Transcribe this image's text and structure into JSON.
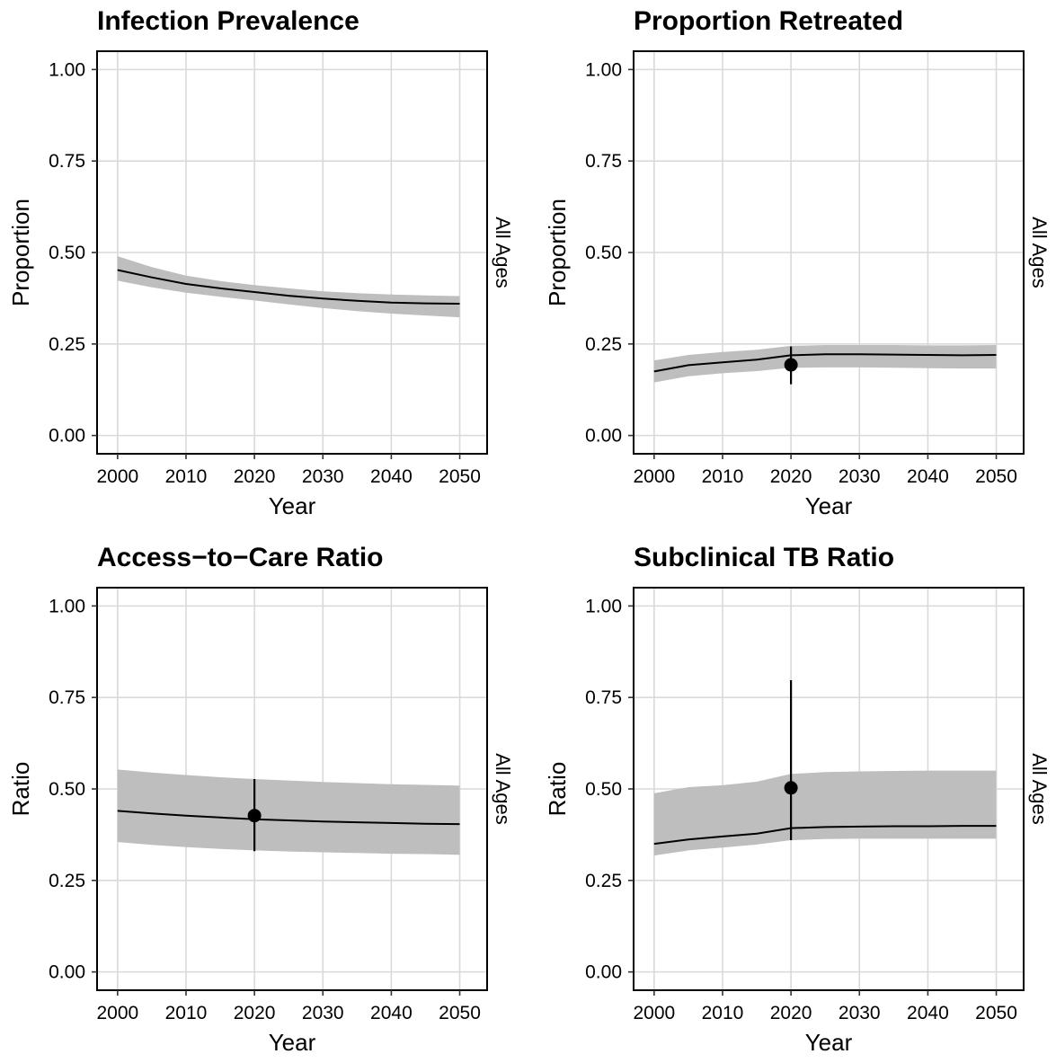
{
  "chart_data": [
    {
      "type": "line",
      "title": "Infection Prevalence",
      "xlabel": "Year",
      "ylabel": "Proportion",
      "facet_label": "All Ages",
      "xlim": [
        1997,
        2054
      ],
      "ylim": [
        -0.05,
        1.05
      ],
      "x_ticks": [
        2000,
        2010,
        2020,
        2030,
        2040,
        2050
      ],
      "y_ticks": [
        0,
        0.25,
        0.5,
        0.75,
        1
      ],
      "x_tick_labels": [
        "2000",
        "2010",
        "2020",
        "2030",
        "2040",
        "2050"
      ],
      "y_tick_labels": [
        "0.00",
        "0.25",
        "0.50",
        "0.75",
        "1.00"
      ],
      "grid": true,
      "series": [
        {
          "x": [
            2000,
            2005,
            2010,
            2015,
            2020,
            2025,
            2030,
            2035,
            2040,
            2045,
            2050
          ],
          "y": [
            0.452,
            0.432,
            0.414,
            0.402,
            0.392,
            0.382,
            0.374,
            0.368,
            0.363,
            0.361,
            0.36
          ],
          "lower": [
            0.423,
            0.405,
            0.39,
            0.379,
            0.369,
            0.358,
            0.348,
            0.34,
            0.333,
            0.328,
            0.323
          ],
          "upper": [
            0.49,
            0.46,
            0.437,
            0.422,
            0.411,
            0.402,
            0.394,
            0.389,
            0.385,
            0.383,
            0.381
          ]
        }
      ],
      "points": []
    },
    {
      "type": "line",
      "title": "Proportion Retreated",
      "xlabel": "Year",
      "ylabel": "Proportion",
      "facet_label": "All Ages",
      "xlim": [
        1997,
        2054
      ],
      "ylim": [
        -0.05,
        1.05
      ],
      "x_ticks": [
        2000,
        2010,
        2020,
        2030,
        2040,
        2050
      ],
      "y_ticks": [
        0,
        0.25,
        0.5,
        0.75,
        1
      ],
      "x_tick_labels": [
        "2000",
        "2010",
        "2020",
        "2030",
        "2040",
        "2050"
      ],
      "y_tick_labels": [
        "0.00",
        "0.25",
        "0.50",
        "0.75",
        "1.00"
      ],
      "grid": true,
      "series": [
        {
          "x": [
            2000,
            2005,
            2010,
            2015,
            2020,
            2025,
            2030,
            2035,
            2040,
            2045,
            2050
          ],
          "y": [
            0.175,
            0.192,
            0.2,
            0.207,
            0.219,
            0.222,
            0.222,
            0.221,
            0.22,
            0.219,
            0.22
          ],
          "lower": [
            0.145,
            0.162,
            0.17,
            0.176,
            0.185,
            0.186,
            0.186,
            0.185,
            0.184,
            0.183,
            0.183
          ],
          "upper": [
            0.205,
            0.22,
            0.228,
            0.234,
            0.245,
            0.247,
            0.247,
            0.247,
            0.246,
            0.246,
            0.247
          ]
        }
      ],
      "points": [
        {
          "x": 2020,
          "y": 0.193,
          "lower": 0.14,
          "upper": 0.243
        }
      ]
    },
    {
      "type": "line",
      "title": "Access−to−Care Ratio",
      "xlabel": "Year",
      "ylabel": "Ratio",
      "facet_label": "All Ages",
      "xlim": [
        1997,
        2054
      ],
      "ylim": [
        -0.05,
        1.05
      ],
      "x_ticks": [
        2000,
        2010,
        2020,
        2030,
        2040,
        2050
      ],
      "y_ticks": [
        0,
        0.25,
        0.5,
        0.75,
        1
      ],
      "x_tick_labels": [
        "2000",
        "2010",
        "2020",
        "2030",
        "2040",
        "2050"
      ],
      "y_tick_labels": [
        "0.00",
        "0.25",
        "0.50",
        "0.75",
        "1.00"
      ],
      "grid": true,
      "series": [
        {
          "x": [
            2000,
            2005,
            2010,
            2015,
            2020,
            2025,
            2030,
            2035,
            2040,
            2045,
            2050
          ],
          "y": [
            0.44,
            0.433,
            0.427,
            0.422,
            0.417,
            0.414,
            0.411,
            0.409,
            0.407,
            0.405,
            0.404
          ],
          "lower": [
            0.355,
            0.347,
            0.341,
            0.336,
            0.332,
            0.329,
            0.327,
            0.325,
            0.323,
            0.322,
            0.32
          ],
          "upper": [
            0.553,
            0.545,
            0.538,
            0.532,
            0.527,
            0.523,
            0.519,
            0.516,
            0.513,
            0.511,
            0.509
          ]
        }
      ],
      "points": [
        {
          "x": 2020,
          "y": 0.427,
          "lower": 0.33,
          "upper": 0.527
        }
      ]
    },
    {
      "type": "line",
      "title": "Subclinical TB Ratio",
      "xlabel": "Year",
      "ylabel": "Ratio",
      "facet_label": "All Ages",
      "xlim": [
        1997,
        2054
      ],
      "ylim": [
        -0.05,
        1.05
      ],
      "x_ticks": [
        2000,
        2010,
        2020,
        2030,
        2040,
        2050
      ],
      "y_ticks": [
        0,
        0.25,
        0.5,
        0.75,
        1
      ],
      "x_tick_labels": [
        "2000",
        "2010",
        "2020",
        "2030",
        "2040",
        "2050"
      ],
      "y_tick_labels": [
        "0.00",
        "0.25",
        "0.50",
        "0.75",
        "1.00"
      ],
      "grid": true,
      "series": [
        {
          "x": [
            2000,
            2005,
            2010,
            2015,
            2020,
            2025,
            2030,
            2035,
            2040,
            2045,
            2050
          ],
          "y": [
            0.35,
            0.362,
            0.37,
            0.378,
            0.393,
            0.396,
            0.397,
            0.398,
            0.398,
            0.399,
            0.399
          ],
          "lower": [
            0.318,
            0.332,
            0.34,
            0.348,
            0.36,
            0.363,
            0.364,
            0.364,
            0.364,
            0.364,
            0.364
          ],
          "upper": [
            0.488,
            0.505,
            0.51,
            0.52,
            0.541,
            0.546,
            0.548,
            0.549,
            0.55,
            0.55,
            0.55
          ]
        }
      ],
      "points": [
        {
          "x": 2020,
          "y": 0.503,
          "lower": 0.36,
          "upper": 0.797
        }
      ]
    }
  ]
}
